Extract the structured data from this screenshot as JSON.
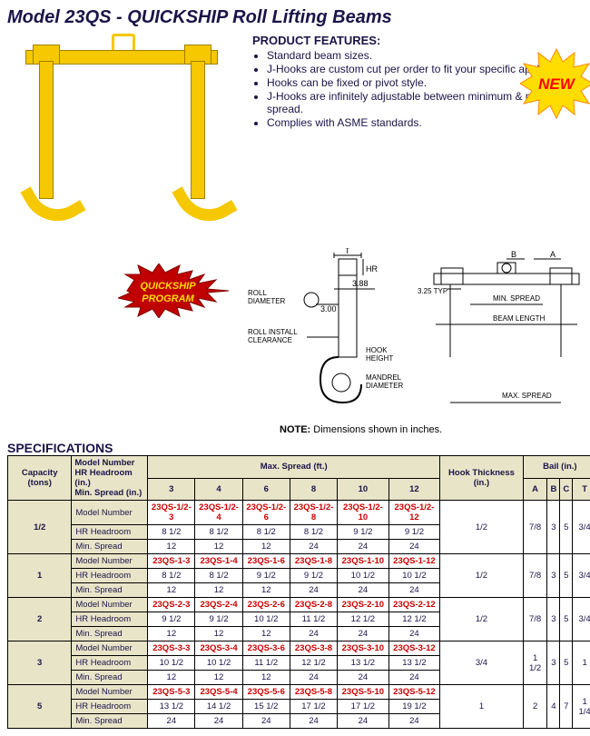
{
  "title": "Model 23QS - QUICKSHIP Roll Lifting Beams",
  "features_title": "PRODUCT FEATURES:",
  "features": [
    "Standard beam sizes.",
    "J-Hooks are custom cut per order to fit your specific application.",
    "Hooks can be fixed or pivot style.",
    "J-Hooks are infinitely adjustable between minimum & maximum spread.",
    "Complies with ASME standards."
  ],
  "new_label": "NEW",
  "quickship_label1": "QUICKSHIP",
  "quickship_label2": "PROGRAM",
  "note_bold": "NOTE:",
  "note_text": " Dimensions shown in inches.",
  "spec_title": "SPECIFICATIONS",
  "diagram1": {
    "roll_diameter": "ROLL DIAMETER",
    "t": "T",
    "hr": "HR",
    "v388": "3.88",
    "v300": "3.00",
    "roll_install": "ROLL INSTALL CLEARANCE",
    "hook_height": "HOOK HEIGHT",
    "mandrel": "MANDREL DIAMETER"
  },
  "diagram2": {
    "b": "B",
    "a": "A",
    "typ": "3.25 TYP",
    "min_spread": "MIN. SPREAD",
    "beam_length": "BEAM LENGTH",
    "max_spread": "MAX. SPREAD"
  },
  "headers": {
    "capacity": "Capacity (tons)",
    "model_hr_min": "Model Number\nHR Headroom (in.)\nMin. Spread (in.)",
    "max_spread": "Max. Spread (ft.)",
    "max_cols": [
      "3",
      "4",
      "6",
      "8",
      "10",
      "12"
    ],
    "hook": "Hook Thickness (in.)",
    "bail": "Bail (in.)",
    "bail_cols": [
      "A",
      "B",
      "C",
      "T"
    ]
  },
  "row_labels": {
    "model": "Model Number",
    "hr": "HR Headroom",
    "min": "Min. Spread"
  },
  "rows": [
    {
      "cap": "1/2",
      "model": [
        "23QS-1/2-3",
        "23QS-1/2-4",
        "23QS-1/2-6",
        "23QS-1/2-8",
        "23QS-1/2-10",
        "23QS-1/2-12"
      ],
      "hr": [
        "8 1/2",
        "8 1/2",
        "8 1/2",
        "8 1/2",
        "9 1/2",
        "9 1/2"
      ],
      "min": [
        "12",
        "12",
        "12",
        "24",
        "24",
        "24"
      ],
      "hook": "1/2",
      "bail": [
        "7/8",
        "3",
        "5",
        "3/4"
      ]
    },
    {
      "cap": "1",
      "model": [
        "23QS-1-3",
        "23QS-1-4",
        "23QS-1-6",
        "23QS-1-8",
        "23QS-1-10",
        "23QS-1-12"
      ],
      "hr": [
        "8 1/2",
        "8 1/2",
        "9 1/2",
        "9 1/2",
        "10 1/2",
        "10 1/2"
      ],
      "min": [
        "12",
        "12",
        "12",
        "24",
        "24",
        "24"
      ],
      "hook": "1/2",
      "bail": [
        "7/8",
        "3",
        "5",
        "3/4"
      ]
    },
    {
      "cap": "2",
      "model": [
        "23QS-2-3",
        "23QS-2-4",
        "23QS-2-6",
        "23QS-2-8",
        "23QS-2-10",
        "23QS-2-12"
      ],
      "hr": [
        "9 1/2",
        "9 1/2",
        "10 1/2",
        "11 1/2",
        "12 1/2",
        "12 1/2"
      ],
      "min": [
        "12",
        "12",
        "12",
        "24",
        "24",
        "24"
      ],
      "hook": "1/2",
      "bail": [
        "7/8",
        "3",
        "5",
        "3/4"
      ]
    },
    {
      "cap": "3",
      "model": [
        "23QS-3-3",
        "23QS-3-4",
        "23QS-3-6",
        "23QS-3-8",
        "23QS-3-10",
        "23QS-3-12"
      ],
      "hr": [
        "10 1/2",
        "10 1/2",
        "11 1/2",
        "12 1/2",
        "13 1/2",
        "13 1/2"
      ],
      "min": [
        "12",
        "12",
        "12",
        "24",
        "24",
        "24"
      ],
      "hook": "3/4",
      "bail": [
        "1 1/2",
        "3",
        "5",
        "1"
      ]
    },
    {
      "cap": "5",
      "model": [
        "23QS-5-3",
        "23QS-5-4",
        "23QS-5-6",
        "23QS-5-8",
        "23QS-5-10",
        "23QS-5-12"
      ],
      "hr": [
        "13 1/2",
        "14 1/2",
        "15 1/2",
        "17 1/2",
        "17 1/2",
        "19 1/2"
      ],
      "min": [
        "24",
        "24",
        "24",
        "24",
        "24",
        "24"
      ],
      "hook": "1",
      "bail": [
        "2",
        "4",
        "7",
        "1 1/4"
      ]
    }
  ],
  "colors": {
    "beam": "#f5c800",
    "navy": "#1a1448",
    "red": "#c00000",
    "burst_yellow": "#ffdd00",
    "burst_red": "#ff0000",
    "table_bg": "#e8e4c8"
  }
}
